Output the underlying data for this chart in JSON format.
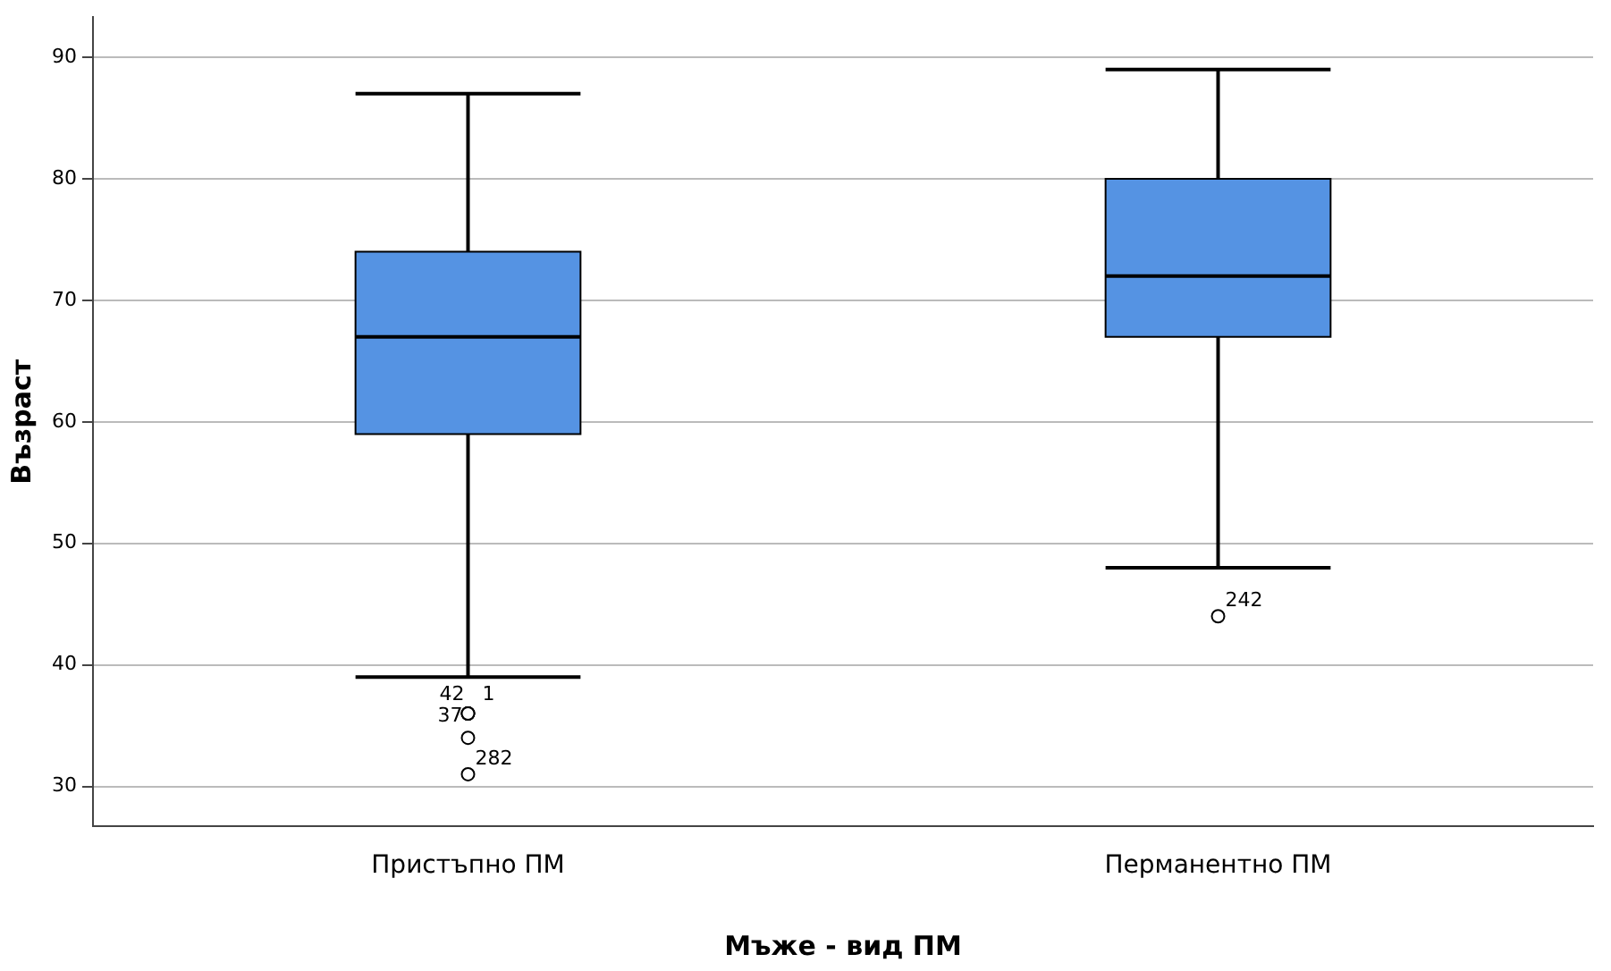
{
  "chart_data": {
    "type": "box",
    "xlabel": "Мъже - вид ПМ",
    "ylabel": "Възраст",
    "categories": [
      "Пристъпно ПМ",
      "Перманентно ПМ"
    ],
    "boxes": [
      {
        "low": 39,
        "q1": 59,
        "median": 67,
        "q3": 74,
        "high": 87,
        "outliers": [
          36,
          36,
          36,
          31,
          34
        ]
      },
      {
        "low": 48,
        "q1": 67,
        "median": 72,
        "q3": 80,
        "high": 89,
        "outliers": [
          44
        ]
      }
    ],
    "color": "#5593e3",
    "ylim": [
      26.7,
      93.3
    ],
    "yticks": [
      30,
      40,
      50,
      60,
      70,
      80,
      90
    ],
    "grid": "y",
    "annotations": [
      "242",
      "42",
      "1",
      "37",
      "282"
    ]
  }
}
